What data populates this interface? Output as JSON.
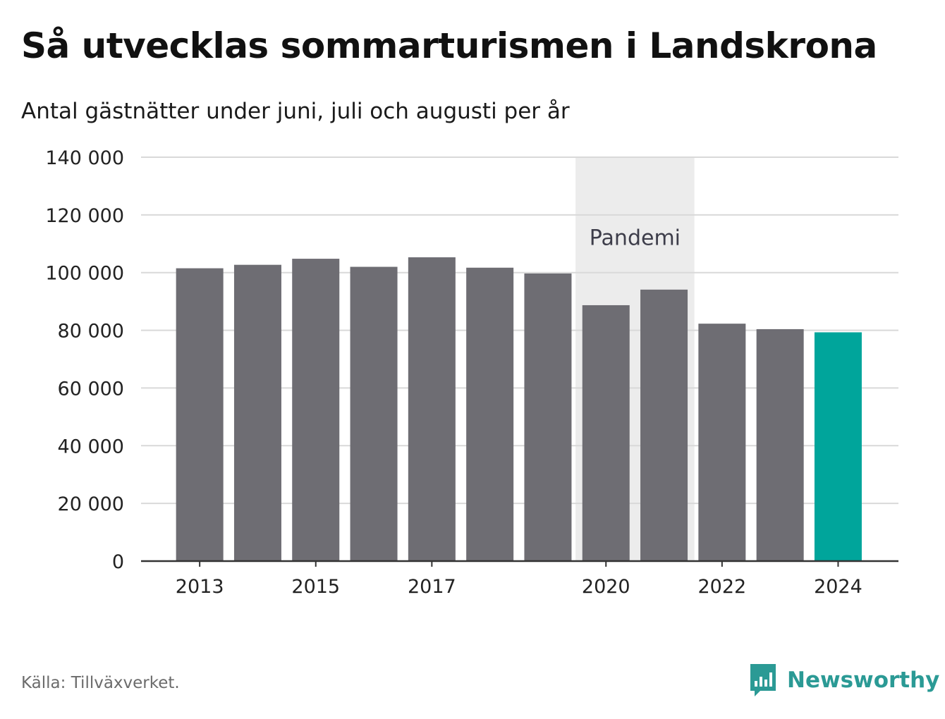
{
  "header": {
    "title": "Så utvecklas sommarturismen i Landskrona",
    "subtitle": "Antal gästnätter under juni, juli och augusti per år"
  },
  "footer": {
    "source": "Källa: Tillväxverket.",
    "brand": "Newsworthy",
    "brand_icon": "bar-chart-logo-icon"
  },
  "colors": {
    "bar": "#6e6d73",
    "highlight": "#00a59b",
    "band": "#ececec",
    "grid": "#d9d9d9",
    "brand": "#2b9a95"
  },
  "chart_data": {
    "type": "bar",
    "categories": [
      "2013",
      "2014",
      "2015",
      "2016",
      "2017",
      "2018",
      "2019",
      "2020",
      "2021",
      "2022",
      "2023",
      "2024"
    ],
    "values": [
      101500,
      102700,
      104800,
      102000,
      105300,
      101700,
      99700,
      88700,
      94100,
      82300,
      80400,
      79300
    ],
    "highlight": "2024",
    "x_tick_labels": [
      "2013",
      "2015",
      "2017",
      "2020",
      "2022",
      "2024"
    ],
    "y_ticks": [
      0,
      20000,
      40000,
      60000,
      80000,
      100000,
      120000,
      140000
    ],
    "y_tick_labels": [
      "0",
      "20 000",
      "40 000",
      "60 000",
      "80 000",
      "100 000",
      "120 000",
      "140 000"
    ],
    "ylim": [
      0,
      140000
    ],
    "annotation": {
      "label": "Pandemi",
      "from": "2020",
      "to": "2021"
    },
    "grid": true,
    "legend": "none",
    "xlabel": "",
    "ylabel": ""
  }
}
